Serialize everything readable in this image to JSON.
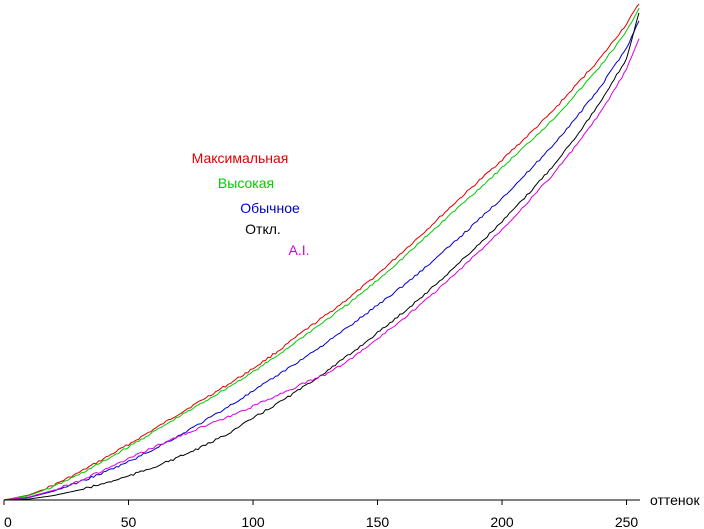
{
  "chart_data": {
    "type": "line",
    "title": "",
    "xlabel": "оттенок",
    "ylabel": "",
    "xlim": [
      0,
      255
    ],
    "ylim": [
      0,
      1
    ],
    "xticks": [
      0,
      50,
      100,
      150,
      200,
      250
    ],
    "grid": false,
    "legend_placement": "center-left",
    "x": [
      0,
      10,
      20,
      30,
      40,
      50,
      60,
      70,
      80,
      90,
      100,
      110,
      120,
      130,
      140,
      150,
      160,
      170,
      180,
      190,
      200,
      210,
      220,
      230,
      240,
      250,
      255
    ],
    "series": [
      {
        "name": "Максимальная",
        "color": "#e00000",
        "values": [
          0,
          0.01,
          0.03,
          0.055,
          0.083,
          0.112,
          0.142,
          0.173,
          0.203,
          0.233,
          0.265,
          0.3,
          0.339,
          0.375,
          0.413,
          0.455,
          0.5,
          0.546,
          0.594,
          0.64,
          0.686,
          0.733,
          0.782,
          0.838,
          0.894,
          0.96,
          1.0
        ]
      },
      {
        "name": "Высокая",
        "color": "#00cc00",
        "values": [
          0,
          0.009,
          0.027,
          0.051,
          0.078,
          0.107,
          0.137,
          0.167,
          0.197,
          0.227,
          0.258,
          0.292,
          0.329,
          0.365,
          0.402,
          0.443,
          0.487,
          0.533,
          0.579,
          0.624,
          0.67,
          0.717,
          0.765,
          0.82,
          0.878,
          0.944,
          0.992
        ]
      },
      {
        "name": "Обычное",
        "color": "#0000cc",
        "values": [
          0,
          0.005,
          0.018,
          0.036,
          0.055,
          0.077,
          0.102,
          0.129,
          0.158,
          0.188,
          0.219,
          0.252,
          0.285,
          0.319,
          0.355,
          0.393,
          0.431,
          0.472,
          0.516,
          0.562,
          0.609,
          0.659,
          0.713,
          0.772,
          0.836,
          0.912,
          0.966
        ]
      },
      {
        "name": "Откл.",
        "color": "#000000",
        "values": [
          0,
          0.002,
          0.009,
          0.02,
          0.033,
          0.048,
          0.066,
          0.086,
          0.108,
          0.134,
          0.165,
          0.195,
          0.227,
          0.261,
          0.298,
          0.337,
          0.377,
          0.419,
          0.465,
          0.512,
          0.561,
          0.614,
          0.671,
          0.735,
          0.805,
          0.89,
          0.982
        ]
      },
      {
        "name": "A.I.",
        "color": "#dd00dd",
        "values": [
          0,
          0.006,
          0.02,
          0.038,
          0.06,
          0.083,
          0.106,
          0.128,
          0.148,
          0.167,
          0.189,
          0.212,
          0.234,
          0.255,
          0.287,
          0.325,
          0.364,
          0.406,
          0.45,
          0.497,
          0.546,
          0.599,
          0.654,
          0.716,
          0.784,
          0.868,
          0.93
        ]
      }
    ]
  }
}
